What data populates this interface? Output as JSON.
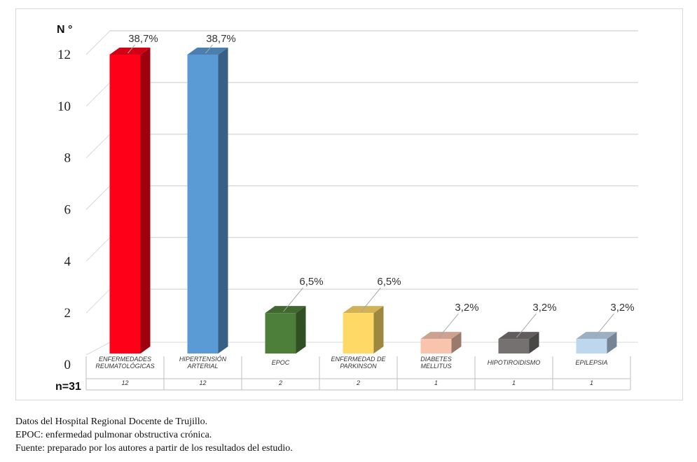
{
  "chart_data": {
    "type": "bar",
    "ylabel": "N °",
    "n_label": "n=31",
    "ylim": [
      0,
      12
    ],
    "yticks": [
      "0",
      "2",
      "4",
      "6",
      "8",
      "10",
      "12"
    ],
    "grid": true,
    "style": "3d-columns",
    "categories": [
      {
        "lines": [
          "ENFERMEDADES",
          "REUMATOLÓGICAS"
        ],
        "value": 12,
        "count": "12",
        "pct": "38,7%",
        "color": "#ff0019"
      },
      {
        "lines": [
          "HIPERTENSIÓN",
          "ARTERIAL"
        ],
        "value": 12,
        "count": "12",
        "pct": "38,7%",
        "color": "#5b9bd5"
      },
      {
        "lines": [
          "EPOC"
        ],
        "value": 2,
        "count": "2",
        "pct": "6,5%",
        "color": "#4e7f3a"
      },
      {
        "lines": [
          "ENFERMEDAD DE",
          "PARKINSON"
        ],
        "value": 2,
        "count": "2",
        "pct": "6,5%",
        "color": "#ffd966"
      },
      {
        "lines": [
          "DIABETES",
          "MELLITUS"
        ],
        "value": 1,
        "count": "1",
        "pct": "3,2%",
        "color": "#f9c4ad"
      },
      {
        "lines": [
          "HIPOTIROIDISMO"
        ],
        "value": 1,
        "count": "1",
        "pct": "3,2%",
        "color": "#767171"
      },
      {
        "lines": [
          "EPILEPSIA"
        ],
        "value": 1,
        "count": "1",
        "pct": "3,2%",
        "color": "#bdd7ee"
      }
    ]
  },
  "notes": [
    "Datos del Hospital Regional Docente de Trujillo.",
    "EPOC: enfermedad pulmonar obstructiva crónica.",
    "Fuente: preparado por los autores a partir de los resultados del estudio."
  ]
}
